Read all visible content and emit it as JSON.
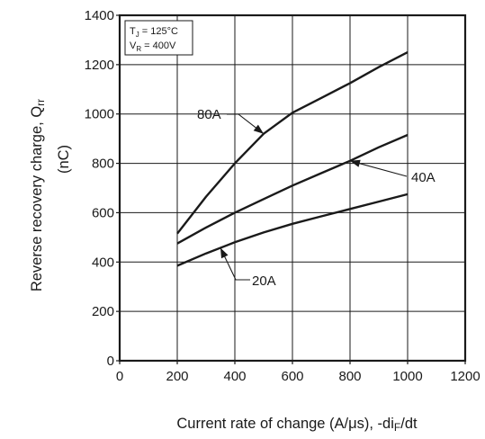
{
  "chart_data": {
    "type": "line",
    "xlabel": "Current rate of change (A/μs), -di",
    "xlabel_sub": "F",
    "xlabel_tail": "/dt",
    "ylabel": "Reverse recovery charge, Q",
    "ylabel_sub": "rr",
    "ylabel_unit": "(nC)",
    "xlim": [
      0,
      1200
    ],
    "ylim": [
      0,
      1400
    ],
    "xticks": [
      "0",
      "200",
      "400",
      "600",
      "800",
      "1000",
      "1200"
    ],
    "yticks": [
      "0",
      "200",
      "400",
      "600",
      "800",
      "1000",
      "1200",
      "1400"
    ],
    "grid": true,
    "conditions": {
      "line1_pre": "T",
      "line1_sub": "J",
      "line1_post": " = 125°C",
      "line2_pre": "V",
      "line2_sub": "R",
      "line2_post": " = 400V"
    },
    "series": [
      {
        "name": "80A",
        "x": [
          200,
          300,
          400,
          500,
          600,
          700,
          800,
          900,
          1000
        ],
        "y": [
          515,
          665,
          800,
          920,
          1005,
          1065,
          1125,
          1190,
          1250
        ]
      },
      {
        "name": "40A",
        "x": [
          200,
          300,
          400,
          500,
          600,
          700,
          800,
          900,
          1000
        ],
        "y": [
          475,
          540,
          600,
          655,
          710,
          760,
          810,
          865,
          915
        ]
      },
      {
        "name": "20A",
        "x": [
          200,
          300,
          400,
          500,
          600,
          700,
          800,
          900,
          1000
        ],
        "y": [
          385,
          435,
          480,
          520,
          555,
          585,
          615,
          645,
          675
        ]
      }
    ],
    "colors": {
      "line": "#1a1a1a",
      "grid": "#1a1a1a",
      "background": "#ffffff"
    }
  }
}
